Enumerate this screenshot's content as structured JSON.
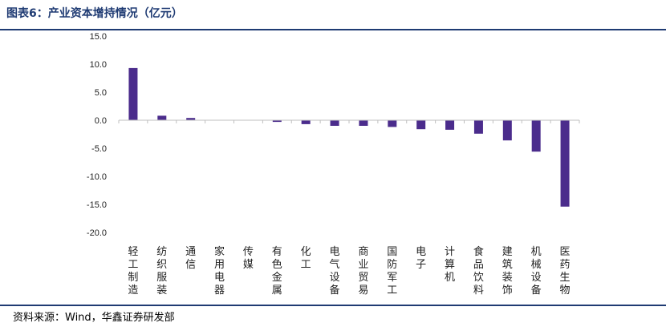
{
  "header": {
    "title": "图表6：产业资本增持情况（亿元）"
  },
  "footer": {
    "source": "资料来源：Wind，华鑫证券研发部"
  },
  "chart_data": {
    "type": "bar",
    "title": "图表6：产业资本增持情况（亿元）",
    "xlabel": "",
    "ylabel": "",
    "ylim": [
      -20,
      15
    ],
    "yticks": [
      "15.0",
      "10.0",
      "5.0",
      "0.0",
      "-5.0",
      "-10.0",
      "-15.0",
      "-20.0"
    ],
    "grid": false,
    "legend": "none",
    "bar_color": "#4b2c8c",
    "categories": [
      "轻工制造",
      "纺织服装",
      "通信",
      "家用电器",
      "传媒",
      "有色金属",
      "化工",
      "电气设备",
      "商业贸易",
      "国防军工",
      "电子",
      "计算机",
      "食品饮料",
      "建筑装饰",
      "机械设备",
      "医药生物"
    ],
    "values": [
      9.3,
      0.8,
      0.4,
      0.05,
      0.05,
      -0.3,
      -0.7,
      -1.0,
      -1.0,
      -1.2,
      -1.6,
      -1.7,
      -2.4,
      -3.6,
      -5.6,
      -15.4
    ]
  }
}
